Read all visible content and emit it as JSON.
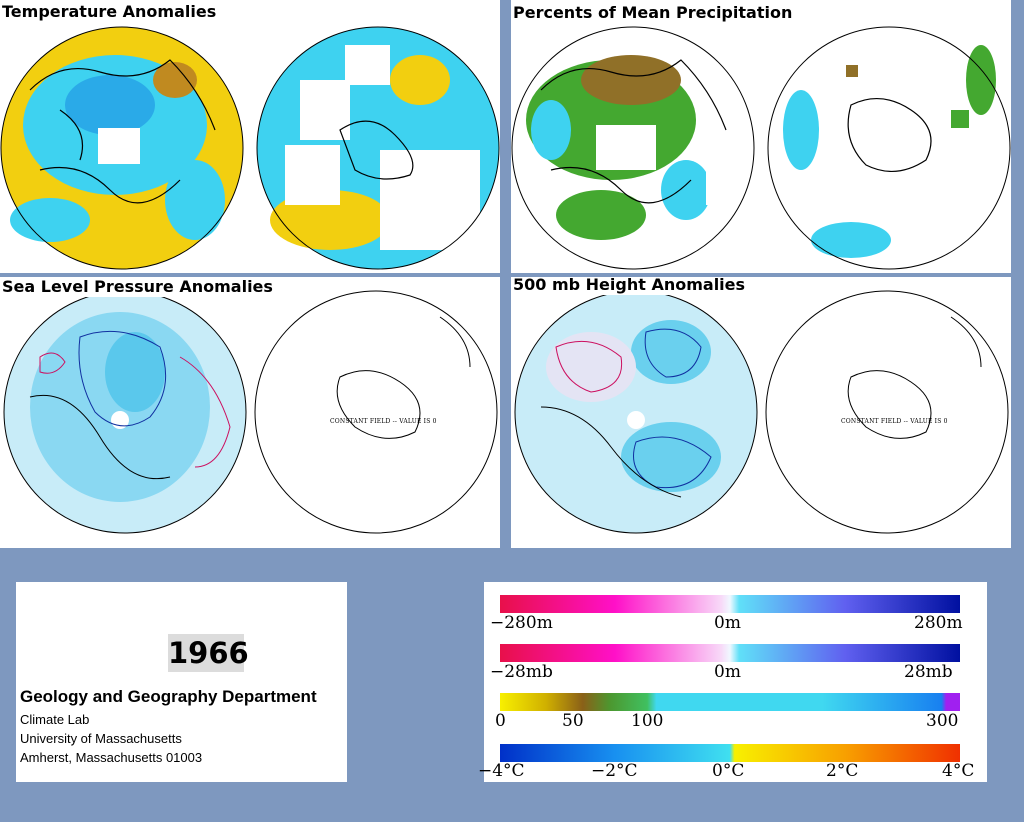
{
  "panels": {
    "temperature": {
      "title": "Temperature Anomalies"
    },
    "precipitation": {
      "title": "Percents of Mean Precipitation"
    },
    "slp": {
      "title": "Sea Level Pressure Anomalies",
      "constant_field": "CONSTANT FIELD -- VALUE IS 0"
    },
    "height500": {
      "title": "500 mb Height Anomalies",
      "constant_field": "CONSTANT FIELD -- VALUE IS 0"
    }
  },
  "info": {
    "year": "1966",
    "department": "Geology and Geography Department",
    "lab": "Climate Lab",
    "university": "University of Massachusetts",
    "address": "Amherst, Massachusetts 01003"
  },
  "legends": {
    "height": {
      "min": "−280m",
      "mid": "0m",
      "max": "280m"
    },
    "pressure": {
      "min": "−28mb",
      "mid": "0m",
      "max": "28mb"
    },
    "precip": {
      "t0": "0",
      "t50": "50",
      "t100": "100",
      "t300": "300"
    },
    "temp": {
      "tm4": "−4°C",
      "tm2": "−2°C",
      "t0": "0°C",
      "t2": "2°C",
      "t4": "4°C"
    }
  },
  "colors": {
    "background": "#7e98bf",
    "temp_warm": "#f0d000",
    "temp_cool": "#38d8f0",
    "precip_wet": "#44a830",
    "precip_dry": "#907028",
    "anomaly_neg_contour": "#cc1060",
    "anomaly_pos_contour": "#1030a0",
    "anomaly_fill": "#a8e4f4"
  }
}
